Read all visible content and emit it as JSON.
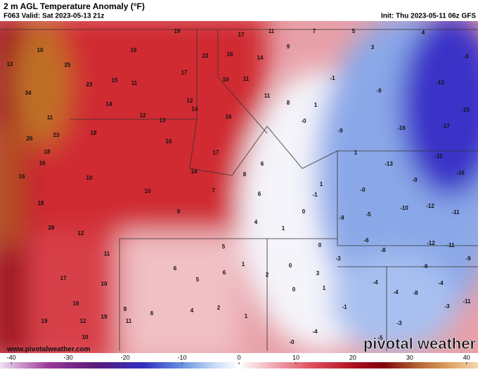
{
  "header": {
    "title": "2 m AGL Temperature Anomaly (°F)",
    "valid": "F063 Valid: Sat 2023-05-13 21z",
    "init": "Init: Thu 2023-05-11 06z GFS"
  },
  "watermark": "www.pivotalweather.com",
  "logo": "pivotal weather",
  "colorbar": {
    "range": [
      -42,
      42
    ],
    "ticks": [
      -40,
      -30,
      -20,
      -10,
      0,
      10,
      20,
      30,
      40
    ]
  },
  "map_labels": [
    "19",
    "17",
    "11",
    "7",
    "5",
    "4",
    "10",
    "16",
    "22",
    "16",
    "14",
    "9",
    "3",
    "-3",
    "13",
    "25",
    "17",
    "10",
    "11",
    "-1",
    "-13",
    "34",
    "23",
    "15",
    "11",
    "-9",
    "14",
    "12",
    "14",
    "11",
    "8",
    "1",
    "-15",
    "11",
    "12",
    "13",
    "16",
    "-0",
    "-9",
    "-16",
    "-17",
    "23",
    "18",
    "26",
    "16",
    "17",
    "18",
    "6",
    "1",
    "-13",
    "-11",
    "16",
    "14",
    "8",
    "-16",
    "16",
    "10",
    "-9",
    "1",
    "-0",
    "7",
    "6",
    "-1",
    "10",
    "18",
    "9",
    "-10",
    "-12",
    "-11",
    "-5",
    "-9",
    "0",
    "4",
    "28",
    "12",
    "1",
    "-6",
    "5",
    "0",
    "-8",
    "-12",
    "-11",
    "11",
    "-3",
    "-9",
    "6",
    "1",
    "0",
    "17",
    "6",
    "5",
    "2",
    "3",
    "-6",
    "-4",
    "-4",
    "10",
    "-4",
    "-8",
    "1",
    "0",
    "16",
    "2",
    "4",
    "6",
    "8",
    "-1",
    "-3",
    "-11",
    "12",
    "19",
    "11",
    "1",
    "-3",
    "-4",
    "10",
    "-0",
    "-5",
    "19"
  ]
}
